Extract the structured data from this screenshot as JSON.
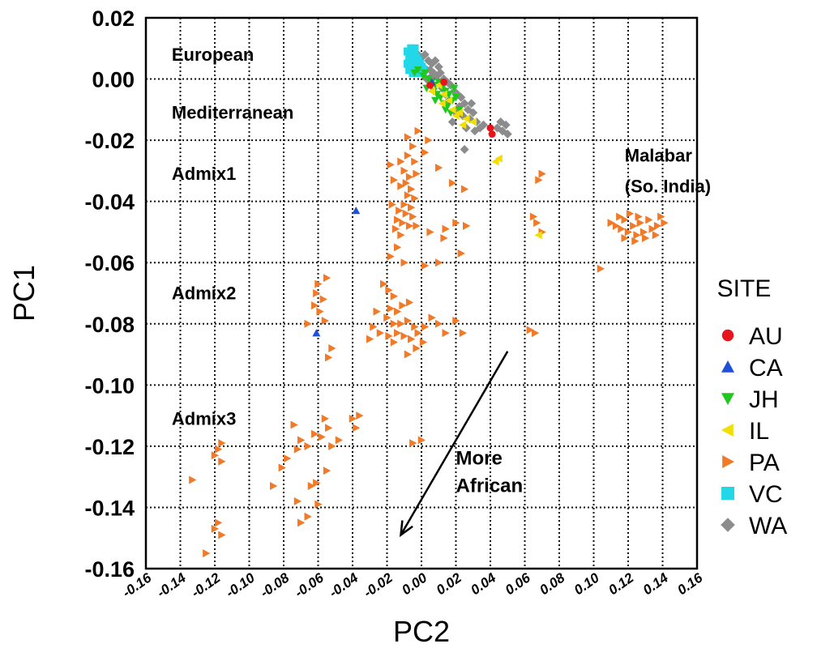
{
  "chart_data": {
    "type": "scatter",
    "xlabel": "PC2",
    "ylabel": "PC1",
    "xlim": [
      -0.16,
      0.16
    ],
    "ylim": [
      -0.16,
      0.02
    ],
    "x_ticks": [
      "-0.16",
      "-0.14",
      "-0.12",
      "-0.10",
      "-0.08",
      "-0.06",
      "-0.04",
      "-0.02",
      "0.00",
      "0.02",
      "0.04",
      "0.06",
      "0.08",
      "0.10",
      "0.12",
      "0.14",
      "0.16"
    ],
    "y_ticks": [
      "0.02",
      "0.00",
      "-0.02",
      "-0.04",
      "-0.06",
      "-0.08",
      "-0.10",
      "-0.12",
      "-0.14",
      "-0.16"
    ],
    "grid": true,
    "legend_title": "SITE",
    "legend_position": "right",
    "region_labels": [
      {
        "text": "European",
        "x": -0.145,
        "y": 0.006
      },
      {
        "text": "Mediterranean",
        "x": -0.145,
        "y": -0.013
      },
      {
        "text": "Admix1",
        "x": -0.145,
        "y": -0.033
      },
      {
        "text": "Admix2",
        "x": -0.145,
        "y": -0.072
      },
      {
        "text": "Admix3",
        "x": -0.145,
        "y": -0.113
      },
      {
        "text": "Malabar",
        "x": 0.118,
        "y": -0.027
      },
      {
        "text": "(So. India)",
        "x": 0.118,
        "y": -0.037
      }
    ],
    "annotation": {
      "lines": [
        "More",
        "African"
      ],
      "text_at": [
        0.02,
        -0.126
      ],
      "arrow_from": [
        0.05,
        -0.089
      ],
      "arrow_to": [
        -0.012,
        -0.149
      ]
    },
    "series": [
      {
        "name": "AU",
        "color": "#e8141c",
        "marker": "circle",
        "points": [
          [
            0.04,
            -0.016
          ],
          [
            0.041,
            -0.018
          ],
          [
            0.013,
            -0.001
          ],
          [
            0.005,
            -0.002
          ]
        ]
      },
      {
        "name": "CA",
        "color": "#1e50d8",
        "marker": "triangle-up",
        "points": [
          [
            -0.038,
            -0.043
          ],
          [
            -0.061,
            -0.083
          ],
          [
            0.006,
            -0.001
          ]
        ]
      },
      {
        "name": "JH",
        "color": "#1ec81e",
        "marker": "triangle-down",
        "points": [
          [
            -0.002,
            0.003
          ],
          [
            0.001,
            0.001
          ],
          [
            0.004,
            0.0
          ],
          [
            0.006,
            -0.001
          ],
          [
            0.008,
            -0.002
          ],
          [
            0.01,
            -0.001
          ],
          [
            0.012,
            -0.003
          ],
          [
            0.014,
            -0.004
          ],
          [
            0.016,
            -0.005
          ],
          [
            0.009,
            -0.005
          ],
          [
            0.011,
            -0.006
          ],
          [
            0.013,
            -0.008
          ],
          [
            0.015,
            -0.009
          ],
          [
            0.018,
            -0.007
          ],
          [
            0.02,
            -0.006
          ],
          [
            0.003,
            -0.003
          ],
          [
            0.007,
            -0.004
          ],
          [
            0.017,
            -0.011
          ],
          [
            0.022,
            -0.01
          ],
          [
            -0.004,
            0.002
          ],
          [
            0.002,
            0.002
          ],
          [
            0.019,
            -0.003
          ],
          [
            0.014,
            -0.01
          ],
          [
            0.008,
            -0.007
          ]
        ]
      },
      {
        "name": "IL",
        "color": "#f2de00",
        "marker": "triangle-left",
        "points": [
          [
            0.01,
            -0.002
          ],
          [
            0.013,
            -0.005
          ],
          [
            0.016,
            -0.007
          ],
          [
            0.018,
            -0.01
          ],
          [
            0.02,
            -0.012
          ],
          [
            0.022,
            -0.011
          ],
          [
            0.026,
            -0.013
          ],
          [
            0.03,
            -0.014
          ],
          [
            0.043,
            -0.027
          ],
          [
            0.045,
            -0.026
          ],
          [
            0.068,
            -0.051
          ],
          [
            0.012,
            -0.008
          ],
          [
            0.024,
            -0.015
          ],
          [
            0.006,
            -0.004
          ]
        ]
      },
      {
        "name": "PA",
        "color": "#f07a28",
        "marker": "triangle-right",
        "points": [
          [
            -0.008,
            -0.019
          ],
          [
            -0.002,
            -0.017
          ],
          [
            -0.005,
            -0.022
          ],
          [
            0.004,
            -0.02
          ],
          [
            -0.008,
            -0.025
          ],
          [
            -0.012,
            -0.027
          ],
          [
            -0.004,
            -0.027
          ],
          [
            -0.01,
            -0.03
          ],
          [
            -0.007,
            -0.032
          ],
          [
            -0.003,
            -0.031
          ],
          [
            -0.009,
            -0.034
          ],
          [
            -0.006,
            -0.036
          ],
          [
            -0.012,
            -0.035
          ],
          [
            -0.008,
            -0.038
          ],
          [
            -0.004,
            -0.039
          ],
          [
            -0.01,
            -0.041
          ],
          [
            -0.006,
            -0.042
          ],
          [
            -0.013,
            -0.043
          ],
          [
            -0.009,
            -0.044
          ],
          [
            -0.005,
            -0.045
          ],
          [
            -0.014,
            -0.046
          ],
          [
            -0.011,
            -0.047
          ],
          [
            -0.007,
            -0.048
          ],
          [
            -0.015,
            -0.049
          ],
          [
            -0.012,
            -0.051
          ],
          [
            -0.003,
            -0.048
          ],
          [
            -0.018,
            -0.028
          ],
          [
            -0.016,
            -0.033
          ],
          [
            -0.017,
            -0.041
          ],
          [
            0.002,
            -0.024
          ],
          [
            0.01,
            -0.029
          ],
          [
            0.018,
            -0.034
          ],
          [
            0.025,
            -0.036
          ],
          [
            -0.014,
            -0.055
          ],
          [
            -0.018,
            -0.058
          ],
          [
            -0.01,
            -0.06
          ],
          [
            0.005,
            -0.05
          ],
          [
            0.014,
            -0.049
          ],
          [
            0.02,
            -0.047
          ],
          [
            0.026,
            -0.048
          ],
          [
            0.002,
            -0.061
          ],
          [
            0.01,
            -0.06
          ],
          [
            0.023,
            -0.057
          ],
          [
            0.013,
            -0.052
          ],
          [
            -0.022,
            -0.067
          ],
          [
            -0.019,
            -0.069
          ],
          [
            -0.016,
            -0.071
          ],
          [
            -0.018,
            -0.075
          ],
          [
            -0.014,
            -0.076
          ],
          [
            -0.011,
            -0.074
          ],
          [
            -0.007,
            -0.073
          ],
          [
            -0.02,
            -0.078
          ],
          [
            -0.016,
            -0.08
          ],
          [
            -0.012,
            -0.08
          ],
          [
            -0.008,
            -0.079
          ],
          [
            -0.004,
            -0.081
          ],
          [
            -0.002,
            -0.083
          ],
          [
            -0.006,
            -0.085
          ],
          [
            -0.01,
            -0.084
          ],
          [
            -0.014,
            -0.083
          ],
          [
            -0.019,
            -0.084
          ],
          [
            -0.024,
            -0.083
          ],
          [
            -0.028,
            -0.081
          ],
          [
            -0.03,
            -0.085
          ],
          [
            0.002,
            -0.081
          ],
          [
            0.006,
            -0.078
          ],
          [
            0.01,
            -0.08
          ],
          [
            0.014,
            -0.083
          ],
          [
            0.02,
            -0.079
          ],
          [
            0.024,
            -0.083
          ],
          [
            -0.026,
            -0.076
          ],
          [
            -0.003,
            -0.088
          ],
          [
            -0.008,
            -0.09
          ],
          [
            0.001,
            -0.086
          ],
          [
            -0.016,
            -0.086
          ],
          [
            -0.06,
            -0.067
          ],
          [
            -0.061,
            -0.07
          ],
          [
            -0.055,
            -0.065
          ],
          [
            -0.057,
            -0.072
          ],
          [
            -0.059,
            -0.076
          ],
          [
            -0.062,
            -0.074
          ],
          [
            -0.066,
            -0.08
          ],
          [
            -0.056,
            -0.079
          ],
          [
            -0.052,
            -0.088
          ],
          [
            -0.054,
            -0.091
          ],
          [
            -0.036,
            -0.11
          ],
          [
            -0.04,
            -0.111
          ],
          [
            -0.038,
            -0.114
          ],
          [
            -0.056,
            -0.111
          ],
          [
            -0.054,
            -0.114
          ],
          [
            -0.058,
            -0.117
          ],
          [
            -0.062,
            -0.116
          ],
          [
            -0.066,
            -0.12
          ],
          [
            -0.07,
            -0.118
          ],
          [
            -0.048,
            -0.118
          ],
          [
            -0.052,
            -0.12
          ],
          [
            -0.074,
            -0.113
          ],
          [
            -0.072,
            -0.121
          ],
          [
            -0.055,
            -0.128
          ],
          [
            -0.061,
            -0.132
          ],
          [
            -0.078,
            -0.124
          ],
          [
            -0.081,
            -0.127
          ],
          [
            -0.086,
            -0.133
          ],
          [
            -0.064,
            -0.133
          ],
          [
            -0.06,
            -0.139
          ],
          [
            -0.066,
            -0.143
          ],
          [
            -0.072,
            -0.138
          ],
          [
            -0.116,
            -0.119
          ],
          [
            -0.118,
            -0.121
          ],
          [
            -0.12,
            -0.123
          ],
          [
            -0.116,
            -0.125
          ],
          [
            -0.133,
            -0.131
          ],
          [
            -0.118,
            -0.145
          ],
          [
            -0.12,
            -0.147
          ],
          [
            -0.116,
            -0.149
          ],
          [
            -0.125,
            -0.155
          ],
          [
            -0.07,
            -0.145
          ],
          [
            -0.005,
            -0.119
          ],
          [
            0.0,
            -0.118
          ],
          [
            0.07,
            -0.031
          ],
          [
            0.068,
            -0.033
          ],
          [
            0.065,
            -0.045
          ],
          [
            0.067,
            -0.047
          ],
          [
            0.07,
            -0.05
          ],
          [
            0.063,
            -0.082
          ],
          [
            0.066,
            -0.083
          ],
          [
            0.104,
            -0.062
          ],
          [
            0.11,
            -0.047
          ],
          [
            0.113,
            -0.048
          ],
          [
            0.116,
            -0.049
          ],
          [
            0.118,
            -0.046
          ],
          [
            0.12,
            -0.05
          ],
          [
            0.123,
            -0.048
          ],
          [
            0.125,
            -0.051
          ],
          [
            0.127,
            -0.047
          ],
          [
            0.13,
            -0.052
          ],
          [
            0.132,
            -0.046
          ],
          [
            0.134,
            -0.049
          ],
          [
            0.136,
            -0.051
          ],
          [
            0.139,
            -0.045
          ],
          [
            0.141,
            -0.047
          ],
          [
            0.121,
            -0.044
          ],
          [
            0.126,
            -0.045
          ],
          [
            0.118,
            -0.052
          ],
          [
            0.129,
            -0.05
          ],
          [
            0.115,
            -0.045
          ],
          [
            0.137,
            -0.048
          ],
          [
            0.124,
            -0.053
          ]
        ]
      },
      {
        "name": "VC",
        "color": "#22d8e8",
        "marker": "square",
        "points": [
          [
            -0.008,
            0.009
          ],
          [
            -0.006,
            0.008
          ],
          [
            -0.004,
            0.009
          ],
          [
            -0.007,
            0.007
          ],
          [
            -0.005,
            0.006
          ],
          [
            -0.003,
            0.007
          ],
          [
            -0.002,
            0.006
          ],
          [
            -0.008,
            0.005
          ],
          [
            -0.006,
            0.004
          ],
          [
            -0.004,
            0.004
          ],
          [
            -0.001,
            0.005
          ],
          [
            0.0,
            0.004
          ],
          [
            -0.007,
            0.003
          ],
          [
            -0.003,
            0.003
          ],
          [
            -0.005,
            0.002
          ],
          [
            -0.002,
            0.002
          ],
          [
            0.001,
            0.003
          ],
          [
            -0.004,
            0.01
          ],
          [
            -0.006,
            0.01
          ]
        ]
      },
      {
        "name": "WA",
        "color": "#8c8c8c",
        "marker": "diamond",
        "points": [
          [
            -0.002,
            0.008
          ],
          [
            0.0,
            0.007
          ],
          [
            0.002,
            0.008
          ],
          [
            0.004,
            0.006
          ],
          [
            0.006,
            0.005
          ],
          [
            0.008,
            0.006
          ],
          [
            0.01,
            0.004
          ],
          [
            0.001,
            0.004
          ],
          [
            0.003,
            0.003
          ],
          [
            0.005,
            0.003
          ],
          [
            0.007,
            0.002
          ],
          [
            0.009,
            0.001
          ],
          [
            0.011,
            0.002
          ],
          [
            0.013,
            0.0
          ],
          [
            0.015,
            -0.001
          ],
          [
            0.017,
            -0.002
          ],
          [
            0.019,
            -0.004
          ],
          [
            0.021,
            -0.005
          ],
          [
            0.023,
            -0.006
          ],
          [
            0.025,
            -0.008
          ],
          [
            0.027,
            -0.01
          ],
          [
            0.022,
            -0.009
          ],
          [
            0.02,
            -0.011
          ],
          [
            0.024,
            -0.012
          ],
          [
            0.028,
            -0.013
          ],
          [
            0.03,
            -0.011
          ],
          [
            0.032,
            -0.014
          ],
          [
            0.034,
            -0.016
          ],
          [
            0.031,
            -0.017
          ],
          [
            0.036,
            -0.015
          ],
          [
            0.044,
            -0.016
          ],
          [
            0.047,
            -0.017
          ],
          [
            0.049,
            -0.015
          ],
          [
            0.05,
            -0.018
          ],
          [
            0.046,
            -0.014
          ],
          [
            0.025,
            -0.023
          ],
          [
            0.018,
            -0.014
          ],
          [
            0.026,
            -0.016
          ],
          [
            0.014,
            -0.005
          ],
          [
            0.003,
            0.0
          ],
          [
            0.012,
            -0.003
          ],
          [
            0.016,
            -0.007
          ],
          [
            0.029,
            -0.008
          ],
          [
            -0.001,
            0.006
          ],
          [
            0.006,
            0.001
          ]
        ]
      }
    ]
  }
}
